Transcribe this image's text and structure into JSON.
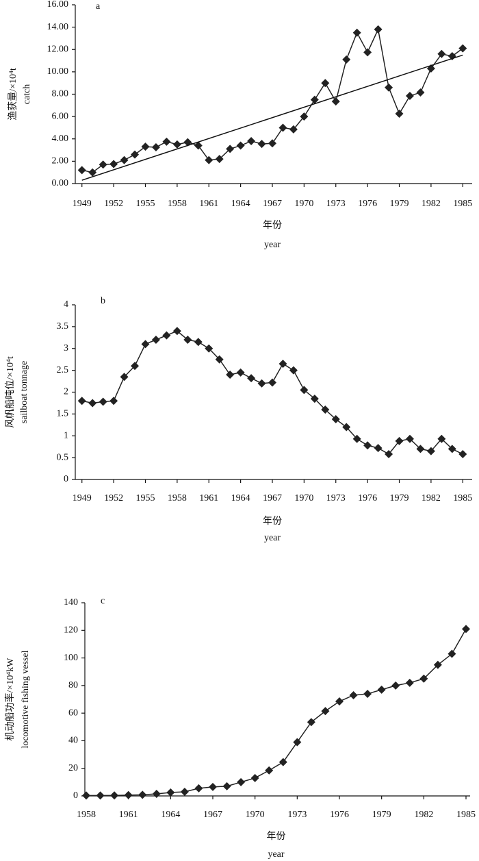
{
  "chart_data": [
    {
      "type": "line",
      "label": "a",
      "xlabel": [
        "年份",
        "year"
      ],
      "ylabel": [
        "渔获量/×10⁴t",
        "catch"
      ],
      "x": [
        1949,
        1950,
        1951,
        1952,
        1953,
        1954,
        1955,
        1956,
        1957,
        1958,
        1959,
        1960,
        1961,
        1962,
        1963,
        1964,
        1965,
        1966,
        1967,
        1968,
        1969,
        1970,
        1971,
        1972,
        1973,
        1974,
        1975,
        1976,
        1977,
        1978,
        1979,
        1980,
        1981,
        1982,
        1983,
        1984,
        1985
      ],
      "series": [
        {
          "color": "#222",
          "values": [
            1.2,
            1.0,
            1.7,
            1.75,
            2.1,
            2.6,
            3.3,
            3.25,
            3.75,
            3.5,
            3.7,
            3.4,
            2.1,
            2.2,
            3.1,
            3.4,
            3.8,
            3.55,
            3.6,
            5.0,
            4.85,
            6.0,
            7.5,
            9.0,
            7.35,
            11.1,
            13.5,
            11.75,
            13.8,
            8.6,
            6.25,
            7.85,
            8.15,
            10.3,
            11.6,
            11.4,
            12.1
          ]
        }
      ],
      "trendline": {
        "x": [
          1949,
          1985
        ],
        "values": [
          0.3,
          11.5
        ]
      },
      "xlim": [
        1948.5,
        1985.5
      ],
      "xticks": [
        1949,
        1952,
        1955,
        1958,
        1961,
        1964,
        1967,
        1970,
        1973,
        1976,
        1979,
        1982,
        1985
      ],
      "ylim": [
        0,
        16
      ],
      "yticks": [
        {
          "value": 0,
          "label": "0.00"
        },
        {
          "value": 2,
          "label": "2.00"
        },
        {
          "value": 4,
          "label": "4.00"
        },
        {
          "value": 6,
          "label": "6.00"
        },
        {
          "value": 8,
          "label": "8.00"
        },
        {
          "value": 10,
          "label": "10.00"
        },
        {
          "value": 12,
          "label": "12.00"
        },
        {
          "value": 14,
          "label": "14.00"
        },
        {
          "value": 16,
          "label": "16.00"
        }
      ]
    },
    {
      "type": "line",
      "label": "b",
      "xlabel": [
        "年份",
        "year"
      ],
      "ylabel": [
        "风帆船吨位/×10⁴t",
        "sailboat tonnage"
      ],
      "x": [
        1949,
        1950,
        1951,
        1952,
        1953,
        1954,
        1955,
        1956,
        1957,
        1958,
        1959,
        1960,
        1961,
        1962,
        1963,
        1964,
        1965,
        1966,
        1967,
        1968,
        1969,
        1970,
        1971,
        1972,
        1973,
        1974,
        1975,
        1976,
        1977,
        1978,
        1979,
        1980,
        1981,
        1982,
        1983,
        1984,
        1985
      ],
      "series": [
        {
          "color": "#222",
          "values": [
            1.8,
            1.75,
            1.78,
            1.8,
            2.35,
            2.6,
            3.1,
            3.2,
            3.3,
            3.4,
            3.2,
            3.15,
            3.0,
            2.75,
            2.4,
            2.45,
            2.32,
            2.2,
            2.22,
            2.65,
            2.5,
            2.05,
            1.85,
            1.6,
            1.38,
            1.2,
            0.93,
            0.78,
            0.72,
            0.58,
            0.88,
            0.93,
            0.7,
            0.65,
            0.93,
            0.7,
            0.58
          ]
        }
      ],
      "xlim": [
        1948.5,
        1985.5
      ],
      "xticks": [
        1949,
        1952,
        1955,
        1958,
        1961,
        1964,
        1967,
        1970,
        1973,
        1976,
        1979,
        1982,
        1985
      ],
      "ylim": [
        0,
        4
      ],
      "yticks": [
        0,
        0.5,
        1,
        1.5,
        2,
        2.5,
        3,
        3.5,
        4
      ]
    },
    {
      "type": "line",
      "label": "c",
      "xlabel": [
        "年份",
        "year"
      ],
      "ylabel": [
        "机动船功率/×10⁴kW",
        "locomotive fishing vessel"
      ],
      "x": [
        1958,
        1959,
        1960,
        1961,
        1962,
        1963,
        1964,
        1965,
        1966,
        1967,
        1968,
        1969,
        1970,
        1971,
        1972,
        1973,
        1974,
        1975,
        1976,
        1977,
        1978,
        1979,
        1980,
        1981,
        1982,
        1983,
        1984,
        1985
      ],
      "series": [
        {
          "color": "#222",
          "values": [
            0.3,
            0.3,
            0.4,
            0.6,
            0.8,
            1.5,
            2.5,
            3,
            5.5,
            6.5,
            7,
            10,
            13,
            18.5,
            24.5,
            39,
            53.5,
            61.5,
            68.5,
            73,
            74,
            77,
            80,
            82,
            85,
            95,
            103,
            121
          ]
        }
      ],
      "xlim": [
        1958,
        1985
      ],
      "xticks": [
        1958,
        1961,
        1964,
        1967,
        1970,
        1973,
        1976,
        1979,
        1982,
        1985
      ],
      "ylim": [
        0,
        140
      ],
      "yticks": [
        0,
        20,
        40,
        60,
        80,
        100,
        120,
        140
      ]
    }
  ]
}
